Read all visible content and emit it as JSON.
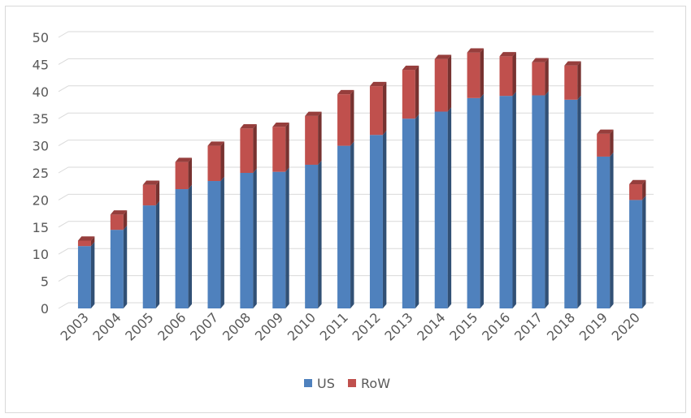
{
  "chart_data": {
    "type": "bar",
    "stacked": true,
    "style": "3d-column",
    "categories": [
      "2003",
      "2004",
      "2005",
      "2006",
      "2007",
      "2008",
      "2009",
      "2010",
      "2011",
      "2012",
      "2013",
      "2014",
      "2015",
      "2016",
      "2017",
      "2018",
      "2019",
      "2020"
    ],
    "series": [
      {
        "name": "US",
        "color": "#4f81bd",
        "values": [
          11.5,
          14.5,
          19,
          22,
          23.5,
          25,
          25.2,
          26.5,
          30,
          32,
          35,
          36.3,
          38.8,
          39.2,
          39.3,
          38.5,
          28,
          20
        ]
      },
      {
        "name": "RoW",
        "color": "#c0504d",
        "values": [
          1,
          2.8,
          3.8,
          5,
          6.5,
          8.2,
          8.3,
          9,
          9.5,
          9,
          9,
          9.7,
          8.4,
          7.3,
          6.1,
          6.3,
          4.2,
          2.9
        ]
      }
    ],
    "title": "",
    "xlabel": "",
    "ylabel": "",
    "ylim": [
      0,
      50
    ],
    "yticks": [
      0,
      5,
      10,
      15,
      20,
      25,
      30,
      35,
      40,
      45,
      50
    ],
    "grid": true,
    "legend": "bottom"
  }
}
